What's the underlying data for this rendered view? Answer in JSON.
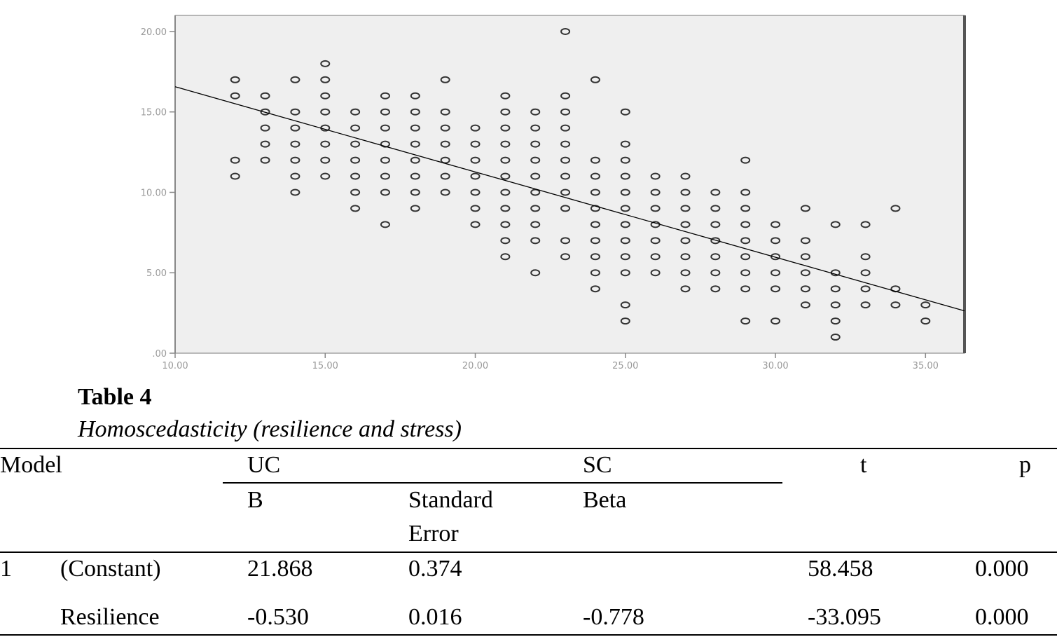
{
  "chart_data": {
    "type": "scatter",
    "title": "",
    "xlabel": "",
    "ylabel": "",
    "xlim": [
      10,
      36.3
    ],
    "ylim": [
      0,
      21
    ],
    "x_ticks": [
      10,
      15,
      20,
      25,
      30,
      35
    ],
    "x_tick_labels": [
      "10.00",
      "15.00",
      "20.00",
      "25.00",
      "30.00",
      "35.00"
    ],
    "y_ticks": [
      0,
      5,
      10,
      15,
      20
    ],
    "y_tick_labels": [
      ".00",
      "5.00",
      "10.00",
      "15.00",
      "20.00"
    ],
    "grid": false,
    "background": "#efefef",
    "fit_line": {
      "intercept": 21.868,
      "slope": -0.53
    },
    "points": [
      [
        12,
        17
      ],
      [
        14,
        17
      ],
      [
        15,
        17
      ],
      [
        19,
        17
      ],
      [
        24,
        17
      ],
      [
        15,
        18
      ],
      [
        23,
        20
      ],
      [
        12,
        16
      ],
      [
        13,
        16
      ],
      [
        15,
        16
      ],
      [
        17,
        16
      ],
      [
        18,
        16
      ],
      [
        21,
        16
      ],
      [
        23,
        16
      ],
      [
        13,
        15
      ],
      [
        14,
        15
      ],
      [
        15,
        15
      ],
      [
        16,
        15
      ],
      [
        17,
        15
      ],
      [
        18,
        15
      ],
      [
        19,
        15
      ],
      [
        21,
        15
      ],
      [
        22,
        15
      ],
      [
        23,
        15
      ],
      [
        25,
        15
      ],
      [
        13,
        14
      ],
      [
        14,
        14
      ],
      [
        15,
        14
      ],
      [
        16,
        14
      ],
      [
        17,
        14
      ],
      [
        18,
        14
      ],
      [
        19,
        14
      ],
      [
        20,
        14
      ],
      [
        21,
        14
      ],
      [
        22,
        14
      ],
      [
        23,
        14
      ],
      [
        13,
        13
      ],
      [
        14,
        13
      ],
      [
        15,
        13
      ],
      [
        16,
        13
      ],
      [
        17,
        13
      ],
      [
        18,
        13
      ],
      [
        19,
        13
      ],
      [
        20,
        13
      ],
      [
        21,
        13
      ],
      [
        22,
        13
      ],
      [
        23,
        13
      ],
      [
        25,
        13
      ],
      [
        12,
        12
      ],
      [
        13,
        12
      ],
      [
        14,
        12
      ],
      [
        15,
        12
      ],
      [
        16,
        12
      ],
      [
        17,
        12
      ],
      [
        18,
        12
      ],
      [
        19,
        12
      ],
      [
        20,
        12
      ],
      [
        21,
        12
      ],
      [
        22,
        12
      ],
      [
        23,
        12
      ],
      [
        24,
        12
      ],
      [
        25,
        12
      ],
      [
        29,
        12
      ],
      [
        12,
        11
      ],
      [
        14,
        11
      ],
      [
        15,
        11
      ],
      [
        16,
        11
      ],
      [
        17,
        11
      ],
      [
        18,
        11
      ],
      [
        19,
        11
      ],
      [
        20,
        11
      ],
      [
        21,
        11
      ],
      [
        22,
        11
      ],
      [
        23,
        11
      ],
      [
        24,
        11
      ],
      [
        25,
        11
      ],
      [
        26,
        11
      ],
      [
        27,
        11
      ],
      [
        14,
        10
      ],
      [
        16,
        10
      ],
      [
        17,
        10
      ],
      [
        18,
        10
      ],
      [
        19,
        10
      ],
      [
        20,
        10
      ],
      [
        21,
        10
      ],
      [
        22,
        10
      ],
      [
        23,
        10
      ],
      [
        24,
        10
      ],
      [
        25,
        10
      ],
      [
        26,
        10
      ],
      [
        27,
        10
      ],
      [
        28,
        10
      ],
      [
        29,
        10
      ],
      [
        16,
        9
      ],
      [
        18,
        9
      ],
      [
        20,
        9
      ],
      [
        21,
        9
      ],
      [
        22,
        9
      ],
      [
        23,
        9
      ],
      [
        24,
        9
      ],
      [
        25,
        9
      ],
      [
        26,
        9
      ],
      [
        27,
        9
      ],
      [
        28,
        9
      ],
      [
        29,
        9
      ],
      [
        31,
        9
      ],
      [
        34,
        9
      ],
      [
        17,
        8
      ],
      [
        20,
        8
      ],
      [
        21,
        8
      ],
      [
        22,
        8
      ],
      [
        24,
        8
      ],
      [
        25,
        8
      ],
      [
        26,
        8
      ],
      [
        27,
        8
      ],
      [
        28,
        8
      ],
      [
        29,
        8
      ],
      [
        30,
        8
      ],
      [
        32,
        8
      ],
      [
        33,
        8
      ],
      [
        21,
        7
      ],
      [
        22,
        7
      ],
      [
        23,
        7
      ],
      [
        24,
        7
      ],
      [
        25,
        7
      ],
      [
        26,
        7
      ],
      [
        27,
        7
      ],
      [
        28,
        7
      ],
      [
        29,
        7
      ],
      [
        30,
        7
      ],
      [
        31,
        7
      ],
      [
        21,
        6
      ],
      [
        23,
        6
      ],
      [
        24,
        6
      ],
      [
        25,
        6
      ],
      [
        26,
        6
      ],
      [
        27,
        6
      ],
      [
        28,
        6
      ],
      [
        29,
        6
      ],
      [
        30,
        6
      ],
      [
        31,
        6
      ],
      [
        33,
        6
      ],
      [
        22,
        5
      ],
      [
        24,
        5
      ],
      [
        25,
        5
      ],
      [
        26,
        5
      ],
      [
        27,
        5
      ],
      [
        28,
        5
      ],
      [
        29,
        5
      ],
      [
        30,
        5
      ],
      [
        31,
        5
      ],
      [
        32,
        5
      ],
      [
        33,
        5
      ],
      [
        24,
        4
      ],
      [
        27,
        4
      ],
      [
        28,
        4
      ],
      [
        29,
        4
      ],
      [
        30,
        4
      ],
      [
        31,
        4
      ],
      [
        32,
        4
      ],
      [
        33,
        4
      ],
      [
        34,
        4
      ],
      [
        25,
        3
      ],
      [
        31,
        3
      ],
      [
        32,
        3
      ],
      [
        33,
        3
      ],
      [
        34,
        3
      ],
      [
        35,
        3
      ],
      [
        25,
        2
      ],
      [
        29,
        2
      ],
      [
        30,
        2
      ],
      [
        32,
        2
      ],
      [
        35,
        2
      ],
      [
        32,
        1
      ]
    ]
  },
  "caption": {
    "number": "Table 4",
    "title": "Homoscedasticity (resilience and stress)"
  },
  "table": {
    "header": {
      "model": "Model",
      "uc": "UC",
      "sc": "SC",
      "t": "t",
      "p": "p",
      "b": "B",
      "se_line1": "Standard",
      "se_line2": "Error",
      "beta": "Beta"
    },
    "rows": [
      {
        "model": "1",
        "predictor": "(Constant)",
        "b": "21.868",
        "se": "0.374",
        "beta": "",
        "t": "58.458",
        "p": "0.000"
      },
      {
        "model": "",
        "predictor": "Resilience",
        "b": "-0.530",
        "se": "0.016",
        "beta": "-0.778",
        "t": "-33.095",
        "p": "0.000"
      }
    ]
  }
}
